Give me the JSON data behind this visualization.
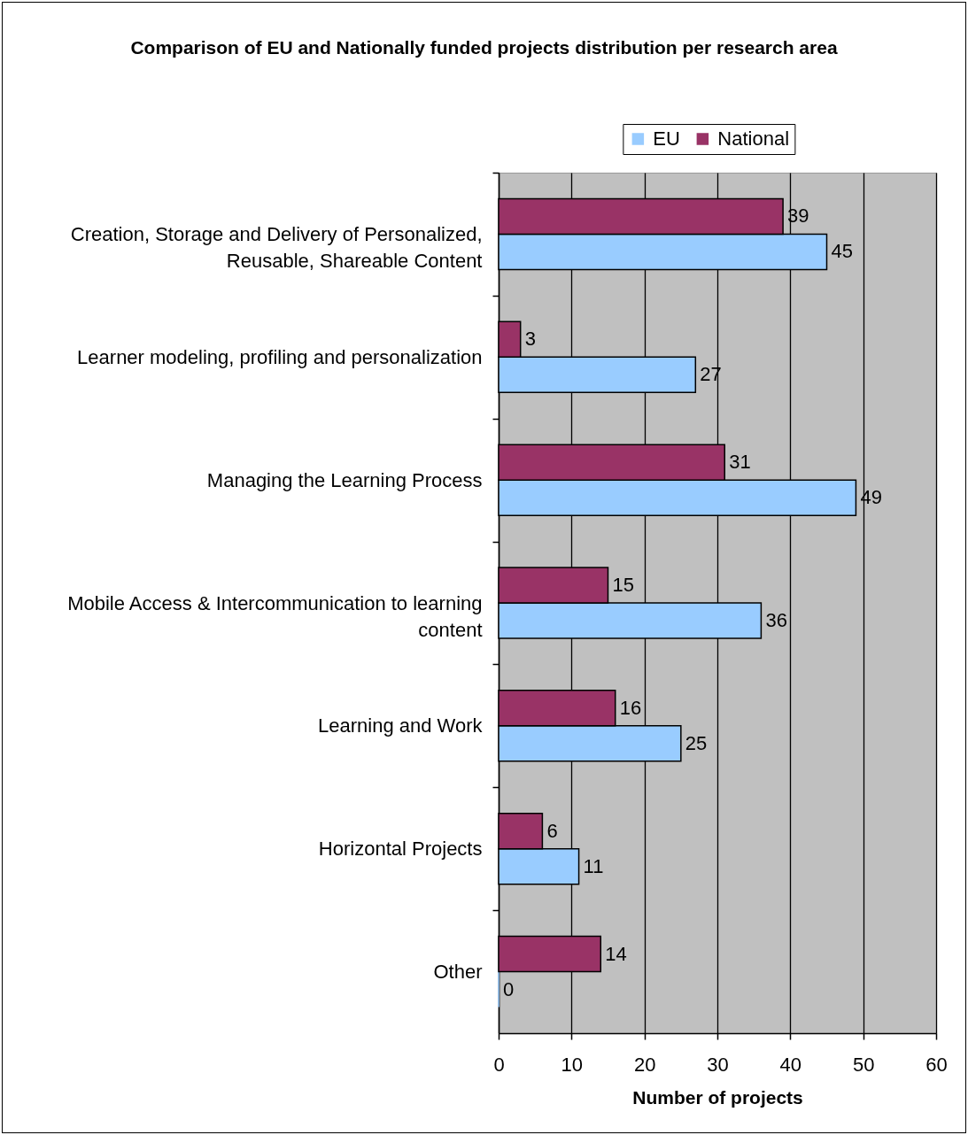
{
  "chart_data": {
    "type": "bar",
    "orientation": "horizontal",
    "title": "Comparison of EU and Nationally funded projects distribution per research area",
    "xlabel": "Number of projects",
    "categories": [
      "Creation, Storage and Delivery of Personalized, Reusable, Shareable Content",
      "Learner modeling, profiling and personalization",
      "Managing the Learning Process",
      "Mobile Access & Intercommunication to learning content",
      "Learning and Work",
      "Horizontal Projects",
      "Other"
    ],
    "series": [
      {
        "name": "EU",
        "color": "#99ccff",
        "values": [
          45,
          27,
          49,
          36,
          25,
          11,
          0
        ]
      },
      {
        "name": "National",
        "color": "#993366",
        "values": [
          39,
          3,
          31,
          15,
          16,
          6,
          14
        ]
      }
    ],
    "xlim": [
      0,
      60
    ],
    "xticks": [
      0,
      10,
      20,
      30,
      40,
      50,
      60
    ],
    "grid": "x",
    "legend": "top",
    "data_labels": true
  }
}
